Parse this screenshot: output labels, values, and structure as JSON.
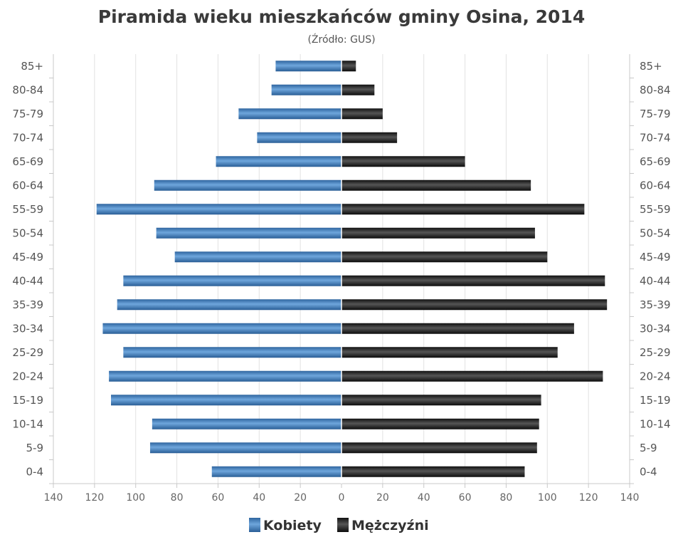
{
  "chart_data": {
    "type": "bar",
    "orientation": "horizontal-pyramid",
    "title": "Piramida wieku mieszkańców gminy Osina, 2014",
    "subtitle": "(Źródło: GUS)",
    "categories": [
      "85+",
      "80-84",
      "75-79",
      "70-74",
      "65-69",
      "60-64",
      "55-59",
      "50-54",
      "45-49",
      "40-44",
      "35-39",
      "30-34",
      "25-29",
      "20-24",
      "15-19",
      "10-14",
      "5-9",
      "0-4"
    ],
    "series": [
      {
        "name": "Kobiety",
        "color": "#3d7bbd",
        "side": "left",
        "values": [
          32,
          34,
          50,
          41,
          61,
          91,
          119,
          90,
          81,
          106,
          109,
          116,
          106,
          113,
          112,
          92,
          93,
          63
        ]
      },
      {
        "name": "Mężczyźni",
        "color": "#1e1e1e",
        "side": "right",
        "values": [
          7,
          16,
          20,
          27,
          60,
          92,
          118,
          94,
          100,
          128,
          129,
          113,
          105,
          127,
          97,
          96,
          95,
          89
        ]
      }
    ],
    "xlim": [
      -140,
      140
    ],
    "x_ticks": [
      140,
      120,
      100,
      80,
      60,
      40,
      20,
      0,
      20,
      40,
      60,
      80,
      100,
      120,
      140
    ],
    "grid": true,
    "legend": "bottom-center"
  }
}
